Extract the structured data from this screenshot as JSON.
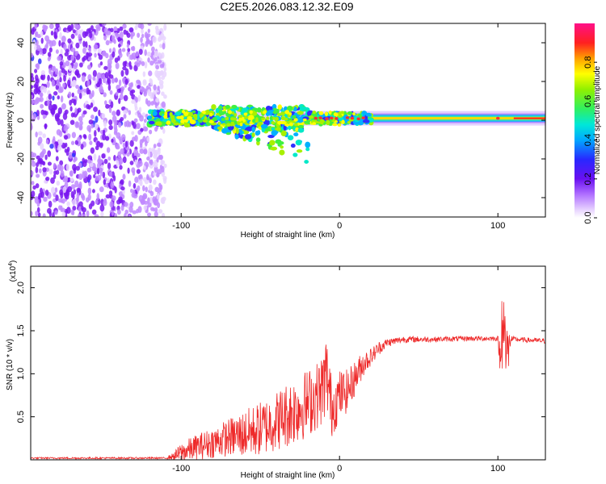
{
  "figure_title": "C2E5.2026.083.12.32.E09",
  "chart_data": [
    {
      "type": "heatmap",
      "title": "C2E5.2026.083.12.32.E09",
      "xlabel": "Height of straight line (km)",
      "ylabel": "Frequency (Hz)",
      "xlim": [
        -195,
        130
      ],
      "ylim": [
        -50,
        50
      ],
      "xticks": [
        -100,
        0,
        100
      ],
      "xtick_labels": [
        "-100",
        "0",
        "100"
      ],
      "yticks": [
        -40,
        -20,
        0,
        20,
        40
      ],
      "ytick_labels": [
        "-40",
        "-20",
        "0",
        "20",
        "40"
      ],
      "colorbar": {
        "label": "Normalized spectral amplitude",
        "range": [
          0,
          1
        ],
        "ticks": [
          0,
          0.2,
          0.4,
          0.6,
          0.8
        ],
        "tick_labels": [
          "0.0",
          "0.2",
          "0.4",
          "0.6",
          "0.8"
        ],
        "colormap": [
          "#e8d4ff",
          "#c088ff",
          "#7a18f0",
          "#3030ff",
          "#00b0ff",
          "#00e8c8",
          "#40f040",
          "#a8f000",
          "#ffff00",
          "#ff9000",
          "#ff2020",
          "#ff1080"
        ]
      },
      "regions": [
        {
          "name": "noise",
          "x_range": [
            -195,
            -110
          ],
          "freq_range": [
            -50,
            50
          ],
          "amplitude": 0.05
        },
        {
          "name": "turbulent",
          "x_range": [
            -120,
            20
          ],
          "freq_range": [
            -25,
            12
          ],
          "amplitude": 0.4
        },
        {
          "name": "steady-carrier",
          "x_range": [
            -20,
            130
          ],
          "freq_center": 1,
          "amplitude": 0.95
        }
      ]
    },
    {
      "type": "line",
      "title": "",
      "xlabel": "Height of straight line (km)",
      "ylabel": "SNR (10 * v/v)",
      "yscale_label": "(x10",
      "yscale_exp": "4",
      "xlim": [
        -195,
        130
      ],
      "ylim": [
        0,
        2.25
      ],
      "xticks": [
        -100,
        0,
        100
      ],
      "xtick_labels": [
        "-100",
        "0",
        "100"
      ],
      "yticks": [
        0.5,
        1.0,
        1.5,
        2.0
      ],
      "ytick_labels": [
        "0.5",
        "1.0",
        "1.5",
        "2.0"
      ],
      "series": [
        {
          "name": "SNR",
          "color": "#ee2a2a",
          "x": [
            -195,
            -110,
            -105,
            -100,
            -90,
            -80,
            -70,
            -60,
            -50,
            -40,
            -30,
            -20,
            -12,
            -8,
            -5,
            0,
            5,
            10,
            15,
            20,
            25,
            30,
            40,
            60,
            80,
            100,
            102,
            104,
            106,
            108,
            110,
            120,
            130
          ],
          "y": [
            0.02,
            0.02,
            0.04,
            0.08,
            0.15,
            0.2,
            0.26,
            0.3,
            0.36,
            0.45,
            0.56,
            0.66,
            0.78,
            1.0,
            0.6,
            0.75,
            0.8,
            0.96,
            1.12,
            1.2,
            1.3,
            1.36,
            1.4,
            1.4,
            1.41,
            1.41,
            1.1,
            1.6,
            1.2,
            1.4,
            1.4,
            1.39,
            1.38
          ],
          "noise_amp": [
            0.01,
            0.01,
            0.04,
            0.12,
            0.15,
            0.18,
            0.22,
            0.28,
            0.32,
            0.35,
            0.4,
            0.4,
            0.4,
            0.5,
            0.35,
            0.3,
            0.25,
            0.2,
            0.15,
            0.1,
            0.08,
            0.05,
            0.04,
            0.03,
            0.03,
            0.03,
            0.3,
            0.5,
            0.4,
            0.05,
            0.03,
            0.03,
            0.03
          ]
        }
      ]
    }
  ]
}
